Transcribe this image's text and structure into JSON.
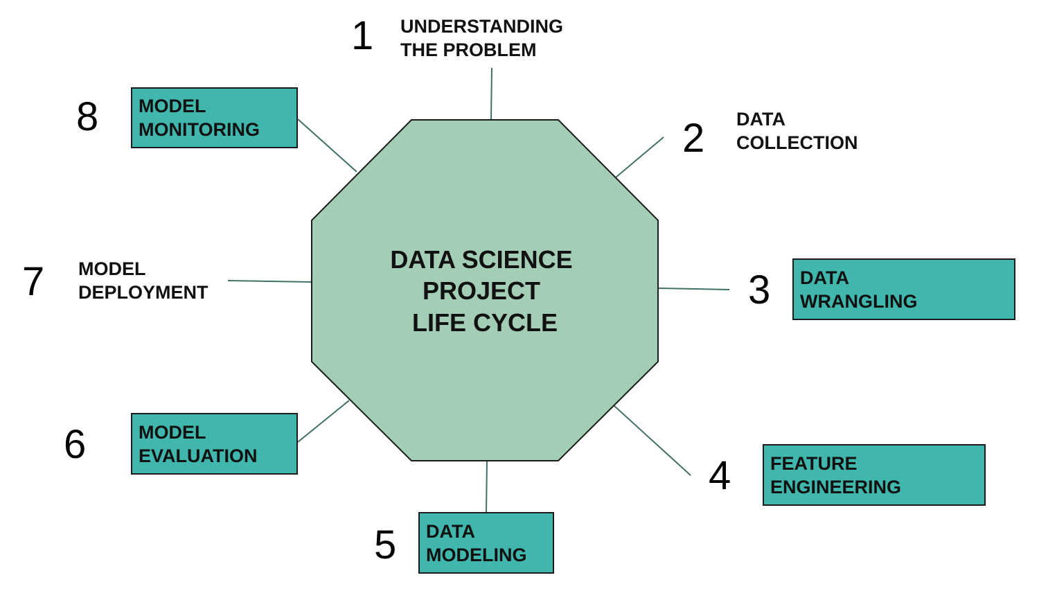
{
  "colors": {
    "octagon_fill": "#a3cdb4",
    "octagon_stroke": "#1b1b1b",
    "box_fill": "#40b6ac",
    "connector": "#3f6f66",
    "text": "#111111"
  },
  "center": {
    "lines": [
      "DATA SCIENCE",
      "PROJECT",
      "LIFE CYCLE"
    ]
  },
  "steps": [
    {
      "number": "1",
      "lines": [
        "UNDERSTANDING",
        "THE PROBLEM"
      ],
      "boxed": false
    },
    {
      "number": "2",
      "lines": [
        "DATA",
        "COLLECTION"
      ],
      "boxed": false
    },
    {
      "number": "3",
      "lines": [
        "DATA",
        "WRANGLING"
      ],
      "boxed": true
    },
    {
      "number": "4",
      "lines": [
        "FEATURE",
        "ENGINEERING"
      ],
      "boxed": true
    },
    {
      "number": "5",
      "lines": [
        "DATA",
        "MODELING"
      ],
      "boxed": true
    },
    {
      "number": "6",
      "lines": [
        "MODEL",
        "EVALUATION"
      ],
      "boxed": true
    },
    {
      "number": "7",
      "lines": [
        "MODEL",
        "DEPLOYMENT"
      ],
      "boxed": false
    },
    {
      "number": "8",
      "lines": [
        "MODEL",
        "MONITORING"
      ],
      "boxed": true
    }
  ]
}
